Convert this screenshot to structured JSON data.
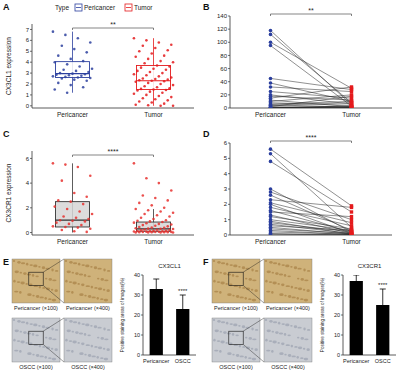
{
  "chart_data": [
    {
      "type": "box",
      "title": "A",
      "legend": "top",
      "legend_title": "Type",
      "categories": [
        "Pericancer",
        "Tumor"
      ],
      "y_label": "CX3CL1 expression",
      "ylim": [
        -0.2,
        7.5
      ],
      "yticks": [
        0,
        1,
        2,
        3,
        4,
        5,
        6,
        7
      ],
      "annotation": "**",
      "series": [
        {
          "name": "Pericancer",
          "color": "#2b3f9e",
          "box": {
            "whisker_low": 1.2,
            "q1": 2.6,
            "median": 2.95,
            "q3": 4.05,
            "whisker_high": 6.8
          },
          "points": [
            6.8,
            6.5,
            6.2,
            5.8,
            5.5,
            5.2,
            4.9,
            4.6,
            4.3,
            4.1,
            4.0,
            3.8,
            3.6,
            3.4,
            3.3,
            3.2,
            3.1,
            3.0,
            2.95,
            2.9,
            2.85,
            2.8,
            2.75,
            2.7,
            2.65,
            2.6,
            2.55,
            2.5,
            2.4,
            2.3,
            2.1,
            1.9,
            1.7,
            1.5,
            1.2
          ]
        },
        {
          "name": "Tumor",
          "color": "#e41a1c",
          "box": {
            "whisker_low": 0,
            "q1": 1.5,
            "median": 2.3,
            "q3": 3.7,
            "whisker_high": 6.2
          },
          "points": [
            6.2,
            6.0,
            5.8,
            5.6,
            5.5,
            5.3,
            5.1,
            5.0,
            4.8,
            4.6,
            4.5,
            4.3,
            4.1,
            4.0,
            3.9,
            3.7,
            3.6,
            3.5,
            3.4,
            3.3,
            3.2,
            3.1,
            3.0,
            2.9,
            2.8,
            2.7,
            2.6,
            2.5,
            2.45,
            2.4,
            2.35,
            2.3,
            2.25,
            2.2,
            2.1,
            2.0,
            1.9,
            1.8,
            1.7,
            1.6,
            1.55,
            1.5,
            1.45,
            1.4,
            1.3,
            1.2,
            1.1,
            1.0,
            0.9,
            0.8,
            0.7,
            0.6,
            0.5,
            0.4,
            0.3,
            0.2,
            0.1,
            0.05,
            0.0,
            0.0
          ]
        }
      ]
    },
    {
      "type": "paired",
      "title": "B",
      "categories": [
        "Pericancer",
        "Tumor"
      ],
      "ylim": [
        0,
        140
      ],
      "yticks": [
        0,
        20,
        40,
        60,
        80,
        100,
        120,
        140
      ],
      "annotation": "**",
      "colors": [
        "#2b3f9e",
        "#e41a1c"
      ],
      "values": [
        [
          118,
          5
        ],
        [
          112,
          8
        ],
        [
          100,
          30
        ],
        [
          95,
          3
        ],
        [
          45,
          28
        ],
        [
          38,
          10
        ],
        [
          32,
          25
        ],
        [
          25,
          15
        ],
        [
          20,
          6
        ],
        [
          18,
          12
        ],
        [
          15,
          32
        ],
        [
          12,
          2
        ],
        [
          10,
          20
        ],
        [
          8,
          4
        ],
        [
          6,
          10
        ],
        [
          5,
          1
        ],
        [
          4,
          8
        ],
        [
          3,
          2
        ],
        [
          2,
          18
        ],
        [
          1,
          0.5
        ],
        [
          0.5,
          1
        ],
        [
          0.3,
          0
        ],
        [
          0,
          3
        ],
        [
          0,
          0
        ]
      ]
    },
    {
      "type": "box",
      "title": "C",
      "categories": [
        "Pericancer",
        "Tumor"
      ],
      "y_label": "CX3CR1 expression",
      "ylim": [
        -0.2,
        6.6
      ],
      "yticks": [
        0,
        2,
        4,
        6
      ],
      "annotation": "****",
      "series": [
        {
          "color": "#e8312f",
          "box": {
            "whisker_low": 0,
            "q1": 0.45,
            "median": 1.0,
            "q3": 2.5,
            "whisker_high": 5.6
          },
          "points": [
            5.6,
            5.5,
            5.3,
            4.6,
            4.2,
            3.2,
            2.9,
            2.6,
            2.5,
            2.3,
            2.1,
            1.9,
            1.7,
            1.5,
            1.3,
            1.2,
            1.1,
            1.0,
            0.95,
            0.9,
            0.8,
            0.7,
            0.6,
            0.5,
            0.45,
            0.4,
            0.3,
            0.2,
            0.1,
            0.05
          ]
        },
        {
          "color": "#e8312f",
          "box": {
            "whisker_low": 0,
            "q1": 0.1,
            "median": 0.3,
            "q3": 0.85,
            "whisker_high": 1.9
          },
          "points": [
            5.6,
            4.4,
            4.0,
            3.4,
            3.0,
            2.8,
            2.6,
            2.4,
            2.2,
            2.0,
            1.9,
            1.8,
            1.7,
            1.6,
            1.5,
            1.4,
            1.3,
            1.2,
            1.1,
            1.0,
            0.95,
            0.9,
            0.85,
            0.8,
            0.75,
            0.7,
            0.65,
            0.6,
            0.55,
            0.5,
            0.45,
            0.4,
            0.38,
            0.35,
            0.32,
            0.3,
            0.28,
            0.25,
            0.22,
            0.2,
            0.18,
            0.15,
            0.13,
            0.12,
            0.1,
            0.1,
            0.08,
            0.07,
            0.06,
            0.05,
            0.05,
            0.04,
            0.03,
            0.03,
            0.02,
            0.02,
            0.01,
            0.01,
            0,
            0
          ]
        }
      ]
    },
    {
      "type": "paired",
      "title": "D",
      "categories": [
        "Pericancer",
        "Tumor"
      ],
      "ylim": [
        0,
        6
      ],
      "yticks": [
        0,
        1,
        2,
        3,
        4,
        5,
        6
      ],
      "annotation": "****",
      "colors": [
        "#2b3f9e",
        "#e41a1c"
      ],
      "values": [
        [
          5.6,
          1.9
        ],
        [
          5.3,
          0.5
        ],
        [
          4.8,
          1.5
        ],
        [
          3.0,
          0.2
        ],
        [
          2.8,
          1.0
        ],
        [
          2.6,
          0.3
        ],
        [
          2.3,
          1.8
        ],
        [
          2.1,
          0.8
        ],
        [
          2.0,
          0.1
        ],
        [
          1.8,
          0.6
        ],
        [
          1.6,
          0.2
        ],
        [
          1.5,
          1.2
        ],
        [
          1.3,
          0.1
        ],
        [
          1.2,
          0.4
        ],
        [
          1.0,
          0.3
        ],
        [
          0.9,
          0.05
        ],
        [
          0.8,
          0.2
        ],
        [
          0.7,
          0.1
        ],
        [
          0.6,
          0.3
        ],
        [
          0.5,
          0.05
        ],
        [
          0.4,
          0.1
        ],
        [
          0.3,
          0.02
        ],
        [
          0.2,
          0.05
        ],
        [
          0.1,
          0
        ],
        [
          0.05,
          0
        ]
      ]
    },
    {
      "type": "bar",
      "title": "E",
      "subtitle": "CX3CL1",
      "images": [
        "Pericancer (×100)",
        "Pericancer (×400)",
        "OSCC (×100)",
        "OSCC (×400)"
      ],
      "categories": [
        "Pericancer",
        "OSCC"
      ],
      "values": [
        33,
        23
      ],
      "errors": [
        5,
        7
      ],
      "y_label": "Positive staining areas of images(%)",
      "color": "#000000",
      "ylim": [
        0,
        40
      ],
      "yticks": [
        0,
        10,
        20,
        30,
        40
      ],
      "annotation": "****"
    },
    {
      "type": "bar",
      "title": "F",
      "subtitle": "CX3CR1",
      "images": [
        "Pericancer (×100)",
        "Pericancer (×400)",
        "OSCC (×100)",
        "OSCC (×400)"
      ],
      "categories": [
        "Pericancer",
        "OSCC"
      ],
      "values": [
        37,
        25
      ],
      "errors": [
        3,
        8
      ],
      "y_label": "Positive staining areas of images(%)",
      "color": "#000000",
      "ylim": [
        0,
        40
      ],
      "yticks": [
        0,
        10,
        20,
        30,
        40
      ],
      "annotation": "****"
    }
  ]
}
